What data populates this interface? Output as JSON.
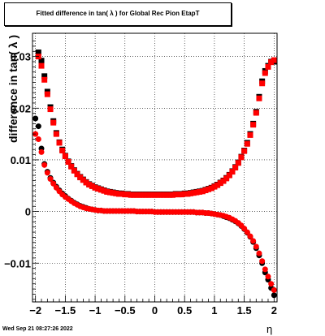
{
  "header": {
    "title": "Fitted difference in tan( λ ) for Global Rec Pion EtapT"
  },
  "footer": {
    "date": "Wed Sep 21 08:27:26 2022"
  },
  "chart_data": {
    "type": "scatter",
    "title": "Fitted difference in tan( λ ) for Global Rec Pion EtapT",
    "xlabel": "η",
    "ylabel": "difference in tan( λ )",
    "xlim": [
      -2.05,
      2.05
    ],
    "ylim": [
      -0.0175,
      0.0345
    ],
    "xticks": [
      -2,
      -1.5,
      -1,
      -0.5,
      0,
      0.5,
      1,
      1.5,
      2
    ],
    "xtick_labels": [
      "−2",
      "−1.5",
      "−1",
      "−0.5",
      "0",
      "0.5",
      "1",
      "1.5",
      "2"
    ],
    "yticks": [
      -0.01,
      0,
      0.01,
      0.02,
      0.03
    ],
    "ytick_labels": [
      "−0.01",
      "0",
      "0.01",
      "0.02",
      "0.03"
    ],
    "grid": true,
    "series": [
      {
        "marker": "square",
        "color": "#000000",
        "x": [
          -1.95,
          -1.9,
          -1.85,
          -1.8,
          -1.75,
          -1.7,
          -1.65,
          -1.6,
          -1.55,
          -1.5,
          -1.45,
          -1.4,
          -1.35,
          -1.3,
          -1.25,
          -1.2,
          -1.15,
          -1.1,
          -1.05,
          -1.0,
          -0.95,
          -0.9,
          -0.85,
          -0.8,
          -0.75,
          -0.7,
          -0.65,
          -0.6,
          -0.55,
          -0.5,
          -0.45,
          -0.4,
          -0.35,
          -0.3,
          -0.25,
          -0.2,
          -0.15,
          -0.1,
          -0.05,
          0.0,
          0.05,
          0.1,
          0.15,
          0.2,
          0.25,
          0.3,
          0.35,
          0.4,
          0.45,
          0.5,
          0.55,
          0.6,
          0.65,
          0.7,
          0.75,
          0.8,
          0.85,
          0.9,
          0.95,
          1.0,
          1.05,
          1.1,
          1.15,
          1.2,
          1.25,
          1.3,
          1.35,
          1.4,
          1.45,
          1.5,
          1.55,
          1.6,
          1.65,
          1.7,
          1.75,
          1.8,
          1.85,
          1.9,
          1.95,
          2.0
        ],
        "y": [
          0.0308,
          0.0292,
          0.0262,
          0.0232,
          0.0202,
          0.0175,
          0.0152,
          0.0134,
          0.012,
          0.0108,
          0.0097,
          0.0088,
          0.008,
          0.0073,
          0.0067,
          0.0062,
          0.0057,
          0.0053,
          0.005,
          0.0047,
          0.0045,
          0.0043,
          0.0041,
          0.0039,
          0.0038,
          0.0037,
          0.0036,
          0.0035,
          0.0035,
          0.0034,
          0.0034,
          0.0033,
          0.0033,
          0.0033,
          0.0033,
          0.0033,
          0.0033,
          0.0033,
          0.0033,
          0.0033,
          0.0033,
          0.0033,
          0.0033,
          0.0033,
          0.0033,
          0.0033,
          0.0034,
          0.0034,
          0.0034,
          0.0035,
          0.0035,
          0.0036,
          0.0037,
          0.0038,
          0.0039,
          0.004,
          0.0042,
          0.0044,
          0.0046,
          0.0049,
          0.0052,
          0.0056,
          0.006,
          0.0065,
          0.0071,
          0.0078,
          0.0086,
          0.0095,
          0.0106,
          0.0118,
          0.0133,
          0.015,
          0.017,
          0.0193,
          0.0222,
          0.0252,
          0.0272,
          0.0282,
          0.029,
          0.029
        ]
      },
      {
        "marker": "square",
        "color": "#ff0000",
        "x": [
          -1.95,
          -1.9,
          -1.85,
          -1.8,
          -1.75,
          -1.7,
          -1.65,
          -1.6,
          -1.55,
          -1.5,
          -1.45,
          -1.4,
          -1.35,
          -1.3,
          -1.25,
          -1.2,
          -1.15,
          -1.1,
          -1.05,
          -1.0,
          -0.95,
          -0.9,
          -0.85,
          -0.8,
          -0.75,
          -0.7,
          -0.65,
          -0.6,
          -0.55,
          -0.5,
          -0.45,
          -0.4,
          -0.35,
          -0.3,
          -0.25,
          -0.2,
          -0.15,
          -0.1,
          -0.05,
          0.0,
          0.05,
          0.1,
          0.15,
          0.2,
          0.25,
          0.3,
          0.35,
          0.4,
          0.45,
          0.5,
          0.55,
          0.6,
          0.65,
          0.7,
          0.75,
          0.8,
          0.85,
          0.9,
          0.95,
          1.0,
          1.05,
          1.1,
          1.15,
          1.2,
          1.25,
          1.3,
          1.35,
          1.4,
          1.45,
          1.5,
          1.55,
          1.6,
          1.65,
          1.7,
          1.75,
          1.8,
          1.85,
          1.9,
          1.95,
          2.0
        ],
        "y": [
          0.03,
          0.0282,
          0.0255,
          0.0227,
          0.0198,
          0.0172,
          0.015,
          0.0133,
          0.0118,
          0.0107,
          0.0096,
          0.0087,
          0.0079,
          0.0072,
          0.0066,
          0.0061,
          0.0056,
          0.0052,
          0.0049,
          0.0046,
          0.0044,
          0.0042,
          0.004,
          0.0038,
          0.0037,
          0.0036,
          0.0035,
          0.0034,
          0.0034,
          0.0033,
          0.0033,
          0.0032,
          0.0032,
          0.0032,
          0.0032,
          0.0032,
          0.0032,
          0.0032,
          0.0032,
          0.0032,
          0.0032,
          0.0032,
          0.0032,
          0.0032,
          0.0032,
          0.0032,
          0.0033,
          0.0033,
          0.0033,
          0.0034,
          0.0034,
          0.0035,
          0.0036,
          0.0037,
          0.0038,
          0.0039,
          0.0041,
          0.0043,
          0.0045,
          0.0048,
          0.0051,
          0.0055,
          0.0059,
          0.0064,
          0.007,
          0.0077,
          0.0085,
          0.0094,
          0.0105,
          0.0117,
          0.0131,
          0.0148,
          0.0168,
          0.0191,
          0.0219,
          0.0248,
          0.0268,
          0.028,
          0.0289,
          0.0293
        ]
      },
      {
        "marker": "circle",
        "color": "#000000",
        "x": [
          -2.0,
          -1.95,
          -1.9,
          -1.85,
          -1.8,
          -1.75,
          -1.7,
          -1.65,
          -1.6,
          -1.55,
          -1.5,
          -1.45,
          -1.4,
          -1.35,
          -1.3,
          -1.25,
          -1.2,
          -1.15,
          -1.1,
          -1.05,
          -1.0,
          -0.95,
          -0.9,
          -0.85,
          -0.8,
          -0.75,
          -0.7,
          -0.65,
          -0.6,
          -0.55,
          -0.5,
          -0.45,
          -0.4,
          -0.35,
          -0.3,
          -0.25,
          -0.2,
          -0.15,
          -0.1,
          -0.05,
          0.0,
          0.05,
          0.1,
          0.15,
          0.2,
          0.25,
          0.3,
          0.35,
          0.4,
          0.45,
          0.5,
          0.55,
          0.6,
          0.65,
          0.7,
          0.75,
          0.8,
          0.85,
          0.9,
          0.95,
          1.0,
          1.05,
          1.1,
          1.15,
          1.2,
          1.25,
          1.3,
          1.35,
          1.4,
          1.45,
          1.5,
          1.55,
          1.6,
          1.65,
          1.7,
          1.75,
          1.8,
          1.85,
          1.9,
          1.95,
          2.0
        ],
        "y": [
          0.018,
          0.0165,
          0.0122,
          0.0092,
          0.0077,
          0.0065,
          0.0056,
          0.0048,
          0.0041,
          0.0035,
          0.003,
          0.0025,
          0.0021,
          0.0017,
          0.0014,
          0.0011,
          0.0009,
          0.0007,
          0.0005,
          0.0004,
          0.0003,
          0.0002,
          0.0002,
          0.0001,
          0.0001,
          0.0001,
          0.0001,
          0.0001,
          0.0001,
          0.0001,
          0.0001,
          0.0001,
          0.0001,
          0.0001,
          0.0,
          0.0,
          0.0,
          0.0,
          0.0,
          0.0,
          -0.0001,
          -0.0001,
          -0.0001,
          -0.0001,
          -0.0001,
          -0.0001,
          -0.0001,
          -0.0001,
          -0.0001,
          -0.0001,
          -0.0001,
          -0.0001,
          -0.0001,
          -0.0001,
          -0.0002,
          -0.0002,
          -0.0002,
          -0.0003,
          -0.0003,
          -0.0004,
          -0.0005,
          -0.0006,
          -0.0007,
          -0.0009,
          -0.0011,
          -0.0013,
          -0.0016,
          -0.0019,
          -0.0023,
          -0.0028,
          -0.0034,
          -0.0041,
          -0.0049,
          -0.0059,
          -0.0071,
          -0.0085,
          -0.01,
          -0.0118,
          -0.0132,
          -0.0148,
          -0.0162
        ]
      },
      {
        "marker": "circle",
        "color": "#ff0000",
        "x": [
          -2.0,
          -1.95,
          -1.9,
          -1.85,
          -1.8,
          -1.75,
          -1.7,
          -1.65,
          -1.6,
          -1.55,
          -1.5,
          -1.45,
          -1.4,
          -1.35,
          -1.3,
          -1.25,
          -1.2,
          -1.15,
          -1.1,
          -1.05,
          -1.0,
          -0.95,
          -0.9,
          -0.85,
          -0.8,
          -0.75,
          -0.7,
          -0.65,
          -0.6,
          -0.55,
          -0.5,
          -0.45,
          -0.4,
          -0.35,
          -0.3,
          -0.25,
          -0.2,
          -0.15,
          -0.1,
          -0.05,
          0.0,
          0.05,
          0.1,
          0.15,
          0.2,
          0.25,
          0.3,
          0.35,
          0.4,
          0.45,
          0.5,
          0.55,
          0.6,
          0.65,
          0.7,
          0.75,
          0.8,
          0.85,
          0.9,
          0.95,
          1.0,
          1.05,
          1.1,
          1.15,
          1.2,
          1.25,
          1.3,
          1.35,
          1.4,
          1.45,
          1.5,
          1.55,
          1.6,
          1.65,
          1.7,
          1.75,
          1.8,
          1.85,
          1.9,
          1.95,
          2.0
        ],
        "y": [
          0.015,
          0.014,
          0.0115,
          0.009,
          0.0075,
          0.0063,
          0.0054,
          0.0046,
          0.0039,
          0.0033,
          0.0028,
          0.0024,
          0.002,
          0.0016,
          0.0013,
          0.001,
          0.0008,
          0.0006,
          0.0005,
          0.0004,
          0.0003,
          0.0002,
          0.0002,
          0.0001,
          0.0001,
          0.0001,
          0.0001,
          0.0001,
          0.0001,
          0.0001,
          0.0001,
          0.0001,
          0.0001,
          0.0001,
          0.0,
          0.0,
          0.0,
          0.0,
          0.0,
          0.0,
          -0.0001,
          -0.0001,
          -0.0001,
          -0.0001,
          -0.0001,
          -0.0001,
          -0.0001,
          -0.0001,
          -0.0001,
          -0.0001,
          -0.0001,
          -0.0001,
          -0.0001,
          -0.0001,
          -0.0002,
          -0.0002,
          -0.0002,
          -0.0003,
          -0.0003,
          -0.0004,
          -0.0005,
          -0.0006,
          -0.0007,
          -0.0008,
          -0.001,
          -0.0012,
          -0.0015,
          -0.0018,
          -0.0022,
          -0.0027,
          -0.0033,
          -0.004,
          -0.0048,
          -0.0057,
          -0.0068,
          -0.0081,
          -0.0096,
          -0.0112,
          -0.0126,
          -0.014,
          -0.0152
        ]
      }
    ]
  }
}
